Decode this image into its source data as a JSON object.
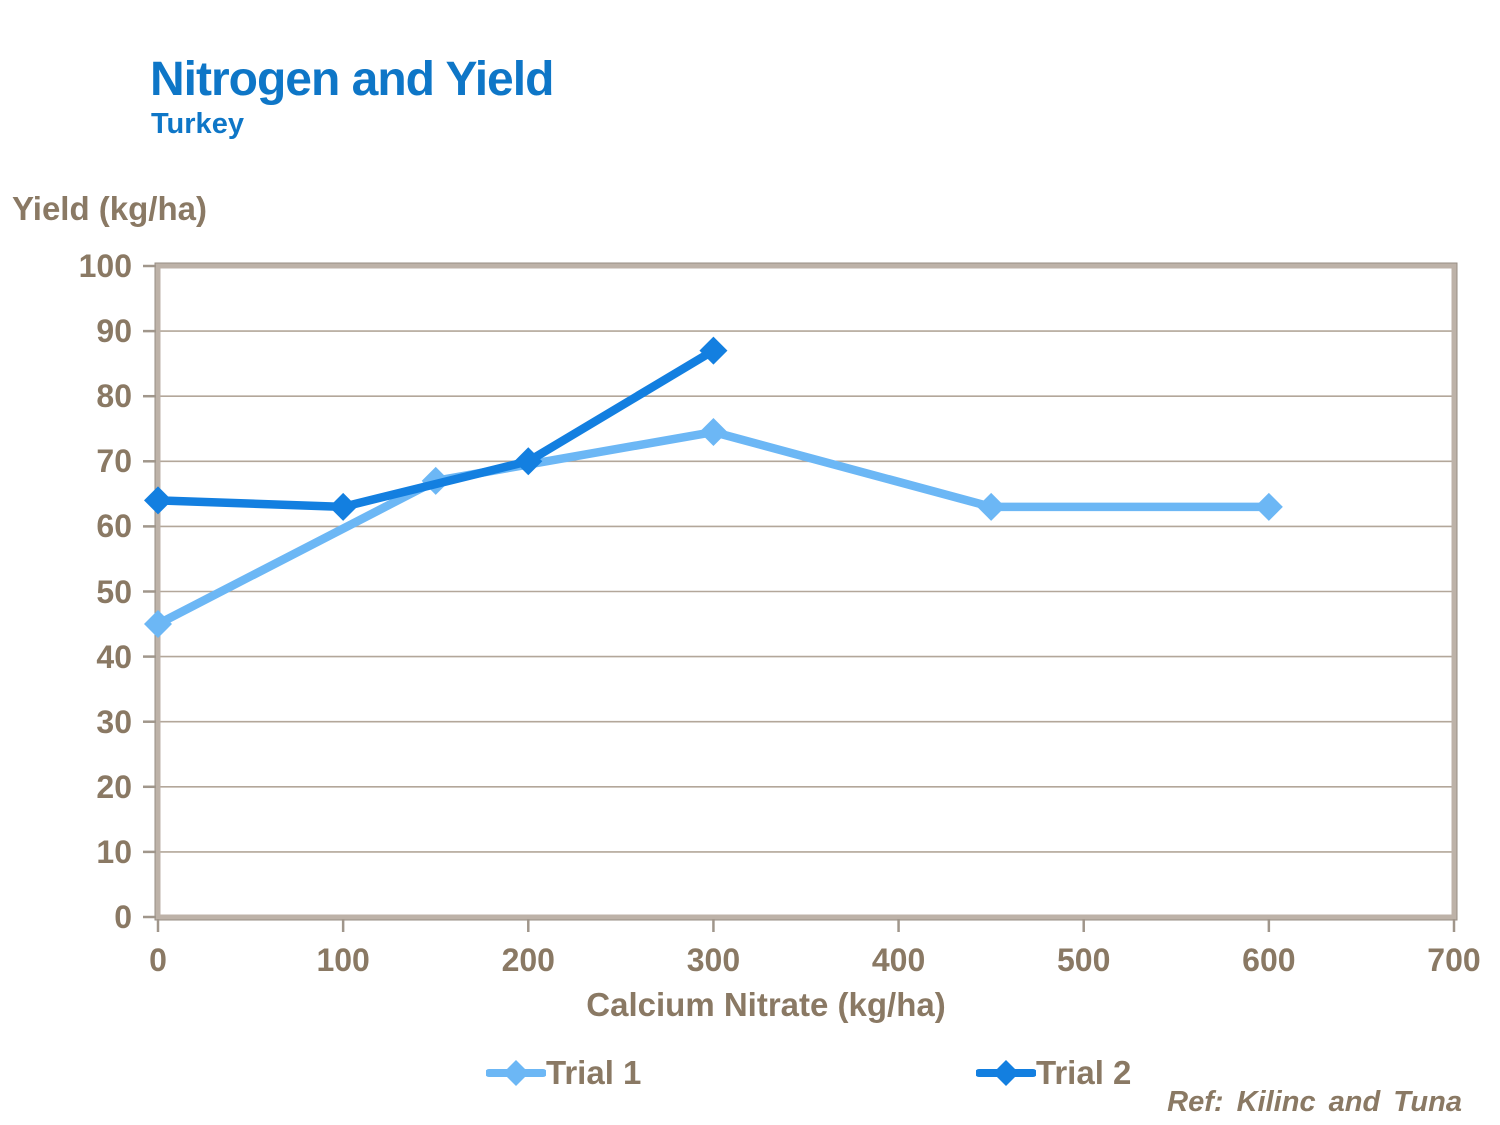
{
  "header": {
    "title": "Nitrogen and Yield",
    "subtitle": "Turkey"
  },
  "footer": {
    "ref": "Ref: Kilinc and Tuna"
  },
  "colors": {
    "title_blue": "#0e76c7",
    "text_brown": "#8a7964",
    "gridline": "#b3a79a",
    "plot_border": "#bdb2a8",
    "trial1_blue": "#6cb7f5",
    "trial2_blue": "#137fe0"
  },
  "chart_data": {
    "type": "line",
    "title": "Nitrogen and Yield",
    "subtitle": "Turkey",
    "xlabel": "Calcium Nitrate (kg/ha)",
    "ylabel": "Yield (kg/ha)",
    "xlim": [
      0,
      700
    ],
    "ylim": [
      0,
      100
    ],
    "x_ticks": [
      0,
      100,
      200,
      300,
      400,
      500,
      600,
      700
    ],
    "y_ticks": [
      0,
      10,
      20,
      30,
      40,
      50,
      60,
      70,
      80,
      90,
      100
    ],
    "grid": "horizontal-only",
    "legend_position": "bottom",
    "annotation": "Ref: Kilinc and Tuna",
    "series": [
      {
        "name": "Trial 1",
        "color": "#6cb7f5",
        "marker": "diamond",
        "points": [
          [
            0,
            45
          ],
          [
            150,
            67
          ],
          [
            300,
            74.5
          ],
          [
            450,
            63
          ],
          [
            600,
            63
          ]
        ]
      },
      {
        "name": "Trial 2",
        "color": "#137fe0",
        "marker": "diamond",
        "points": [
          [
            0,
            64
          ],
          [
            100,
            63
          ],
          [
            200,
            70
          ],
          [
            300,
            87
          ]
        ]
      }
    ]
  }
}
